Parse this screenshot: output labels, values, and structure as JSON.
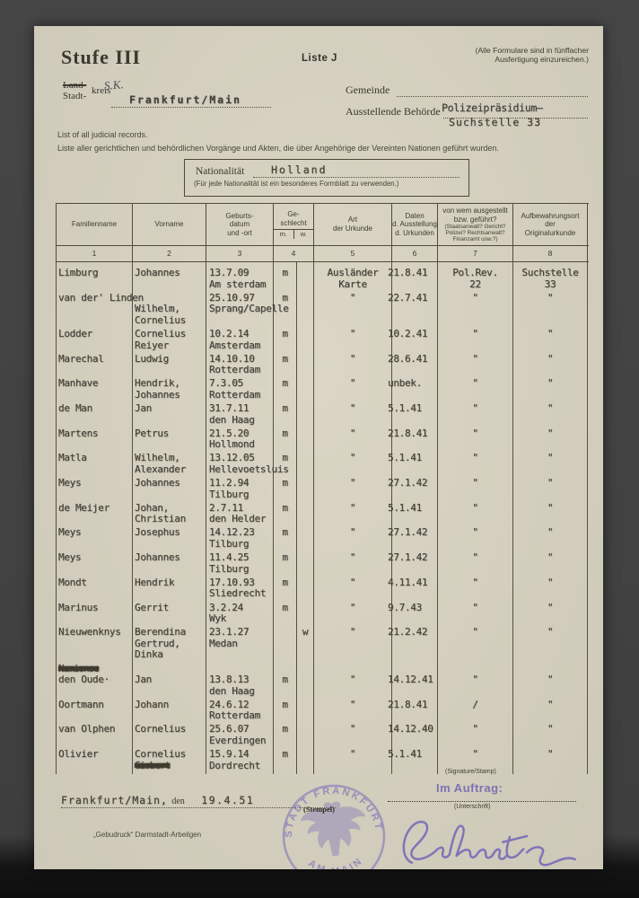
{
  "header": {
    "stufe": "Stufe III",
    "liste": "Liste J",
    "copies_note": [
      "(Alle Formulare sind in fünffacher",
      "Ausfertigung einzureichen.)"
    ]
  },
  "region": {
    "land": "Land-",
    "stadt": "Stadt-",
    "kreis": "kreis",
    "handwritten": "S.K.",
    "kreis_value": "Frankfurt/Main",
    "gemeinde_label": "Gemeinde",
    "behoerde_label": "Ausstellende Behörde",
    "behoerde_line1": "Polizeipräsidium—",
    "behoerde_line2": "Suchstelle 33"
  },
  "intro": {
    "english": "List of all judicial records.",
    "german": "Liste aller gerichtlichen und behördlichen Vorgänge und Akten, die über Angehörige der Vereinten Nationen geführt wurden."
  },
  "nationality": {
    "label": "Nationalität",
    "value": "Holland",
    "note": "(Für jede Nationalität ist ein besonderes Formblatt zu verwenden.)"
  },
  "table": {
    "columns": [
      {
        "lines": [
          "Familienname"
        ],
        "num": "1"
      },
      {
        "lines": [
          "Vorname"
        ],
        "num": "2"
      },
      {
        "lines": [
          "Geburts-",
          "datum",
          "und -ort"
        ],
        "num": "3"
      },
      {
        "lines": [
          "Ge-",
          "schlecht"
        ],
        "sub": [
          "m.",
          "w."
        ],
        "num": "4"
      },
      {
        "lines": [
          "Art",
          "der Urkunde"
        ],
        "num": "5"
      },
      {
        "lines": [
          "Daten",
          "d. Ausstellung",
          "d. Urkunden"
        ],
        "num": "6"
      },
      {
        "lines": [
          "von wem ausgestellt",
          "bzw. geführt?"
        ],
        "small": [
          "(Staatsanwalt? Gericht?",
          "Polizei? Rechtsanwalt?",
          "Finanzamt usw.?)"
        ],
        "num": "7"
      },
      {
        "lines": [
          "Aufbewahrungsort",
          "der",
          "Originalurkunde"
        ],
        "num": "8"
      }
    ],
    "rows": [
      {
        "c": [
          [
            "Limburg"
          ],
          [
            "Johannes"
          ],
          [
            "13.7.09",
            "Am sterdam"
          ],
          [
            "m"
          ],
          [],
          [
            "Ausländer",
            "Karte"
          ],
          [
            "21.8.41"
          ],
          [
            "Pol.Rev.",
            "22"
          ],
          [
            "Suchstelle",
            "33"
          ]
        ]
      },
      {
        "c": [
          [
            "van der' Linden"
          ],
          [
            "",
            "Wilhelm,",
            "Cornelius"
          ],
          [
            "25.10.97",
            "Sprang/Capelle"
          ],
          [
            "m"
          ],
          [],
          [
            "\""
          ],
          [
            "22.7.41"
          ],
          [
            "\""
          ],
          [
            "\""
          ]
        ]
      },
      {
        "c": [
          [
            "Lodder"
          ],
          [
            "Cornelius",
            "Reiyer"
          ],
          [
            "10.2.14",
            "Amsterdam"
          ],
          [
            "m"
          ],
          [],
          [
            "\""
          ],
          [
            "10.2.41"
          ],
          [
            "\""
          ],
          [
            "\""
          ]
        ]
      },
      {
        "c": [
          [
            "Marechal"
          ],
          [
            "Ludwig"
          ],
          [
            "14.10.10",
            "Rotterdam"
          ],
          [
            "m"
          ],
          [],
          [
            "\""
          ],
          [
            "28.6.41"
          ],
          [
            "\""
          ],
          [
            "\""
          ]
        ]
      },
      {
        "c": [
          [
            "Manhave"
          ],
          [
            "Hendrik,",
            "Johannes"
          ],
          [
            "7.3.05",
            "Rotterdam"
          ],
          [
            "m"
          ],
          [],
          [
            "\""
          ],
          [
            "unbek."
          ],
          [
            "\""
          ],
          [
            "\""
          ]
        ]
      },
      {
        "c": [
          [
            "de Man"
          ],
          [
            "Jan"
          ],
          [
            "31.7.11",
            "den Haag"
          ],
          [
            "m"
          ],
          [],
          [
            "\""
          ],
          [
            "5.1.41"
          ],
          [
            "\""
          ],
          [
            "\""
          ]
        ]
      },
      {
        "c": [
          [
            "Martens"
          ],
          [
            "Petrus"
          ],
          [
            "21.5.20",
            "Hollmond"
          ],
          [
            "m"
          ],
          [],
          [
            "\""
          ],
          [
            "21.8.41"
          ],
          [
            "\""
          ],
          [
            "\""
          ]
        ]
      },
      {
        "c": [
          [
            "Matla"
          ],
          [
            "Wilhelm,",
            "Alexander"
          ],
          [
            "13.12.05",
            "Hellevoetsluis"
          ],
          [
            "m"
          ],
          [],
          [
            "\""
          ],
          [
            "5.1.41"
          ],
          [
            "\""
          ],
          [
            "\""
          ]
        ]
      },
      {
        "c": [
          [
            "Meys"
          ],
          [
            "Johannes"
          ],
          [
            "11.2.94",
            "Tilburg"
          ],
          [
            "m"
          ],
          [],
          [
            "\""
          ],
          [
            "27.1.42"
          ],
          [
            "\""
          ],
          [
            "\""
          ]
        ]
      },
      {
        "c": [
          [
            "de Meijer"
          ],
          [
            "Johan,",
            "Christian"
          ],
          [
            "2.7.11",
            "den Helder"
          ],
          [
            "m"
          ],
          [],
          [
            "\""
          ],
          [
            "5.1.41"
          ],
          [
            "\""
          ],
          [
            "\""
          ]
        ]
      },
      {
        "c": [
          [
            "Meys"
          ],
          [
            "Josephus"
          ],
          [
            "14.12.23",
            "Tilburg"
          ],
          [
            "m"
          ],
          [],
          [
            "\""
          ],
          [
            "27.1.42"
          ],
          [
            "\""
          ],
          [
            "\""
          ]
        ]
      },
      {
        "c": [
          [
            "Meys"
          ],
          [
            "Johannes"
          ],
          [
            "11.4.25",
            "Tilburg"
          ],
          [
            "m"
          ],
          [],
          [
            "\""
          ],
          [
            "27.1.42"
          ],
          [
            "\""
          ],
          [
            "\""
          ]
        ]
      },
      {
        "c": [
          [
            "Mondt"
          ],
          [
            "Hendrik"
          ],
          [
            "17.10.93",
            "Sliedrecht"
          ],
          [
            "m"
          ],
          [],
          [
            "\""
          ],
          [
            "4.11.41"
          ],
          [
            "\""
          ],
          [
            "\""
          ]
        ]
      },
      {
        "c": [
          [
            "Marinus"
          ],
          [
            "Gerrit"
          ],
          [
            "3.2.24",
            "Wyk"
          ],
          [
            "m"
          ],
          [],
          [
            "\""
          ],
          [
            "9.7.43"
          ],
          [
            "\""
          ],
          [
            "\""
          ]
        ]
      },
      {
        "c": [
          [
            "Nieuwenknys"
          ],
          [
            "Berendina",
            "Gertrud,",
            "Dinka"
          ],
          [
            "23.1.27",
            "Medan"
          ],
          [],
          [
            "w"
          ],
          [
            "\""
          ],
          [
            "21.2.42"
          ],
          [
            "\""
          ],
          [
            "\""
          ]
        ]
      },
      {
        "c": [
          [
            {
              "t": "Namionse",
              "struck": true
            },
            "den Oude·"
          ],
          [
            "",
            "Jan"
          ],
          [
            "",
            "13.8.13",
            "den Haag"
          ],
          [
            "",
            "m"
          ],
          [],
          [
            "",
            "\""
          ],
          [
            "",
            "14.12.41"
          ],
          [
            "",
            "\""
          ],
          [
            "",
            "\""
          ]
        ]
      },
      {
        "c": [
          [
            "Oortmann"
          ],
          [
            "Johann"
          ],
          [
            "24.6.12",
            "Rotterdam"
          ],
          [
            "m"
          ],
          [],
          [
            "\""
          ],
          [
            "21.8.41"
          ],
          [
            "/"
          ],
          [
            "\""
          ]
        ]
      },
      {
        "c": [
          [
            "van Olphen"
          ],
          [
            "Cornelius"
          ],
          [
            "25.6.07",
            "Everdingen"
          ],
          [
            "m"
          ],
          [],
          [
            "\""
          ],
          [
            "14.12.40"
          ],
          [
            "\""
          ],
          [
            "\""
          ]
        ]
      },
      {
        "c": [
          [
            "Olivier"
          ],
          [
            "Cornelius",
            {
              "t": "Gisbert",
              "struck": true
            }
          ],
          [
            "15.9.14",
            "Dordrecht"
          ],
          [
            "m"
          ],
          [],
          [
            "\""
          ],
          [
            "5.1.41"
          ],
          [
            "\""
          ],
          [
            "\""
          ]
        ]
      }
    ]
  },
  "footer": {
    "signature_stamp_note": "(Signature/Stamp)",
    "place": "Frankfurt/Main,",
    "den_label": "den",
    "date": "19.4.51",
    "stempel_note": "(Stempel)",
    "im_auftrag": "Im Auftrag:",
    "unterschrift_note": "(Unterschrift)",
    "signature_name": "Schmitz",
    "stamp_text_top": "STADT FRANKFURT",
    "stamp_text_bottom": "AM MAIN",
    "print_note": "„Gebudruck“ Darmstadt-Arbeilgen"
  },
  "colors": {
    "paper": "#d8d3c1",
    "ink": "#3b392e",
    "typed_ink": "#45413a",
    "stamp_purple": "#7c6fb8",
    "photo_background": "#424242"
  }
}
